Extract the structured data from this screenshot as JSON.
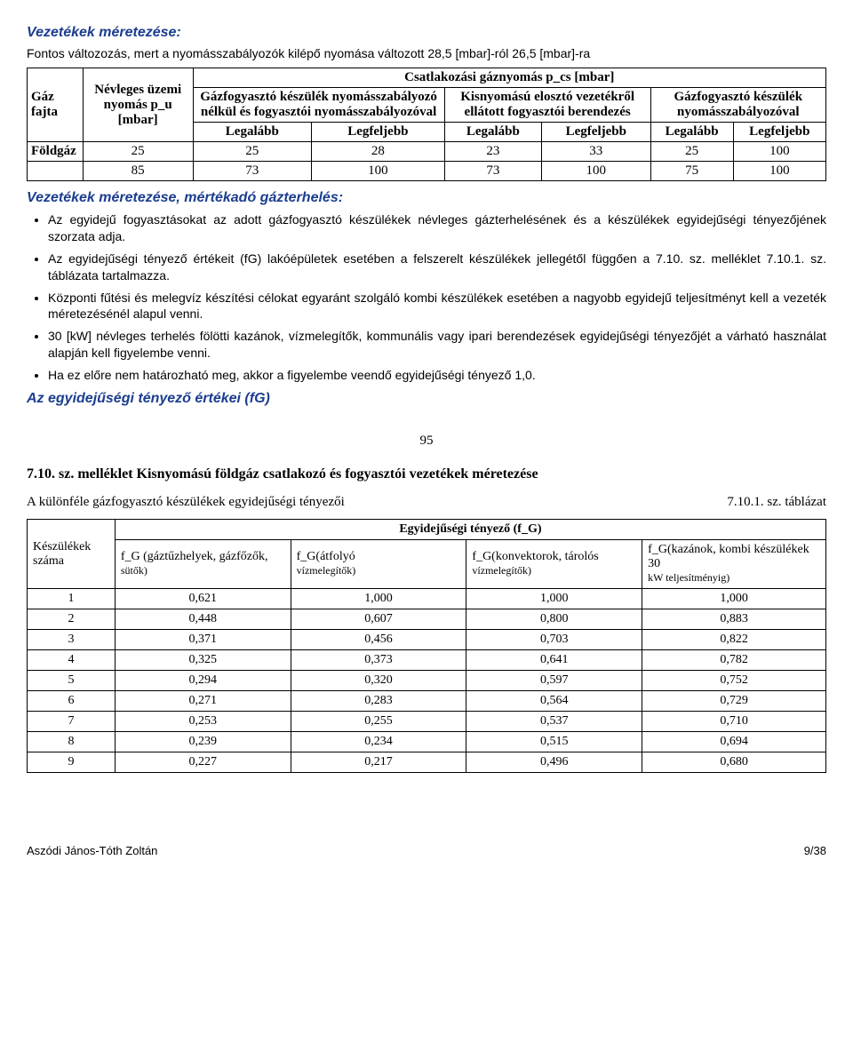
{
  "heading_main": "Vezetékek méretezése:",
  "intro": "Fontos változozás, mert a nyomásszabályozók kilépő nyomása változott 28,5 [mbar]-ról 26,5 [mbar]-ra",
  "table1": {
    "top_header": "Csatlakozási gáznyomás p_cs [mbar]",
    "col_gas": "Gáz fajta",
    "col_nom": "Névleges üzemi nyomás p_u [mbar]",
    "sub1": "Gázfogyasztó készülék nyomásszabályozó nélkül és fogyasztói nyomásszabályozóval",
    "sub2": "Kisnyomású elosztó vezetékről ellátott fogyasztói berendezés",
    "sub3": "Gázfogyasztó készülék nyomásszabályozóval",
    "min": "Legalább",
    "max": "Legfeljebb",
    "rows": [
      {
        "gas": "Földgáz",
        "nom": "25",
        "a1": "25",
        "a2": "28",
        "b1": "23",
        "b2": "33",
        "c1": "25",
        "c2": "100"
      },
      {
        "gas": "",
        "nom": "85",
        "a1": "73",
        "a2": "100",
        "b1": "73",
        "b2": "100",
        "c1": "75",
        "c2": "100"
      }
    ]
  },
  "heading_sub": "Vezetékek méretezése, mértékadó gázterhelés:",
  "bullets": [
    "Az egyidejű fogyasztásokat az adott gázfogyasztó készülékek névleges gázterhelésének és a készülékek egyidejűségi tényezőjének szorzata adja.",
    "Az egyidejűségi tényező értékeit (fG) lakóépületek esetében a felszerelt készülékek jellegétől függően a 7.10. sz. melléklet 7.10.1. sz. táblázata tartalmazza.",
    "Központi fűtési és melegvíz készítési célokat egyaránt szolgáló kombi készülékek esetében a nagyobb egyidejű teljesítményt kell a vezeték méretezésénél alapul venni.",
    "30 [kW] névleges terhelés fölötti kazánok, vízmelegítők, kommunális vagy ipari berendezések egyidejűségi tényezőjét a várható használat alapján kell figyelembe venni.",
    "Ha ez előre nem határozható meg, akkor a figyelembe veendő egyidejűségi tényező 1,0."
  ],
  "heading_fgvalues": "Az egyidejűségi tényező értékei (fG)",
  "page_num": "95",
  "appendix_title": "7.10. sz. melléklet Kisnyomású földgáz csatlakozó és fogyasztói vezetékek méretezése",
  "appendix_left": "A különféle gázfogyasztó készülékek egyidejűségi tényezői",
  "appendix_right": "7.10.1. sz. táblázat",
  "table2": {
    "col_count": "Készülékek száma",
    "top": "Egyidejűségi tényező (f_G)",
    "sub_cols": [
      {
        "main": "f_G (gáztűzhelyek, gázfőzők,",
        "sub": "sütők)"
      },
      {
        "main": "f_G(átfolyó",
        "sub": "vízmelegítők)"
      },
      {
        "main": "f_G(konvektorok, tárolós",
        "sub": "vízmelegítők)"
      },
      {
        "main": "f_G(kazánok, kombi készülékek 30",
        "sub": "kW teljesítményig)"
      }
    ],
    "rows": [
      [
        "1",
        "0,621",
        "1,000",
        "1,000",
        "1,000"
      ],
      [
        "2",
        "0,448",
        "0,607",
        "0,800",
        "0,883"
      ],
      [
        "3",
        "0,371",
        "0,456",
        "0,703",
        "0,822"
      ],
      [
        "4",
        "0,325",
        "0,373",
        "0,641",
        "0,782"
      ],
      [
        "5",
        "0,294",
        "0,320",
        "0,597",
        "0,752"
      ],
      [
        "6",
        "0,271",
        "0,283",
        "0,564",
        "0,729"
      ],
      [
        "7",
        "0,253",
        "0,255",
        "0,537",
        "0,710"
      ],
      [
        "8",
        "0,239",
        "0,234",
        "0,515",
        "0,694"
      ],
      [
        "9",
        "0,227",
        "0,217",
        "0,496",
        "0,680"
      ]
    ]
  },
  "footer_left": "Aszódi János-Tóth Zoltán",
  "footer_right": "9/38"
}
